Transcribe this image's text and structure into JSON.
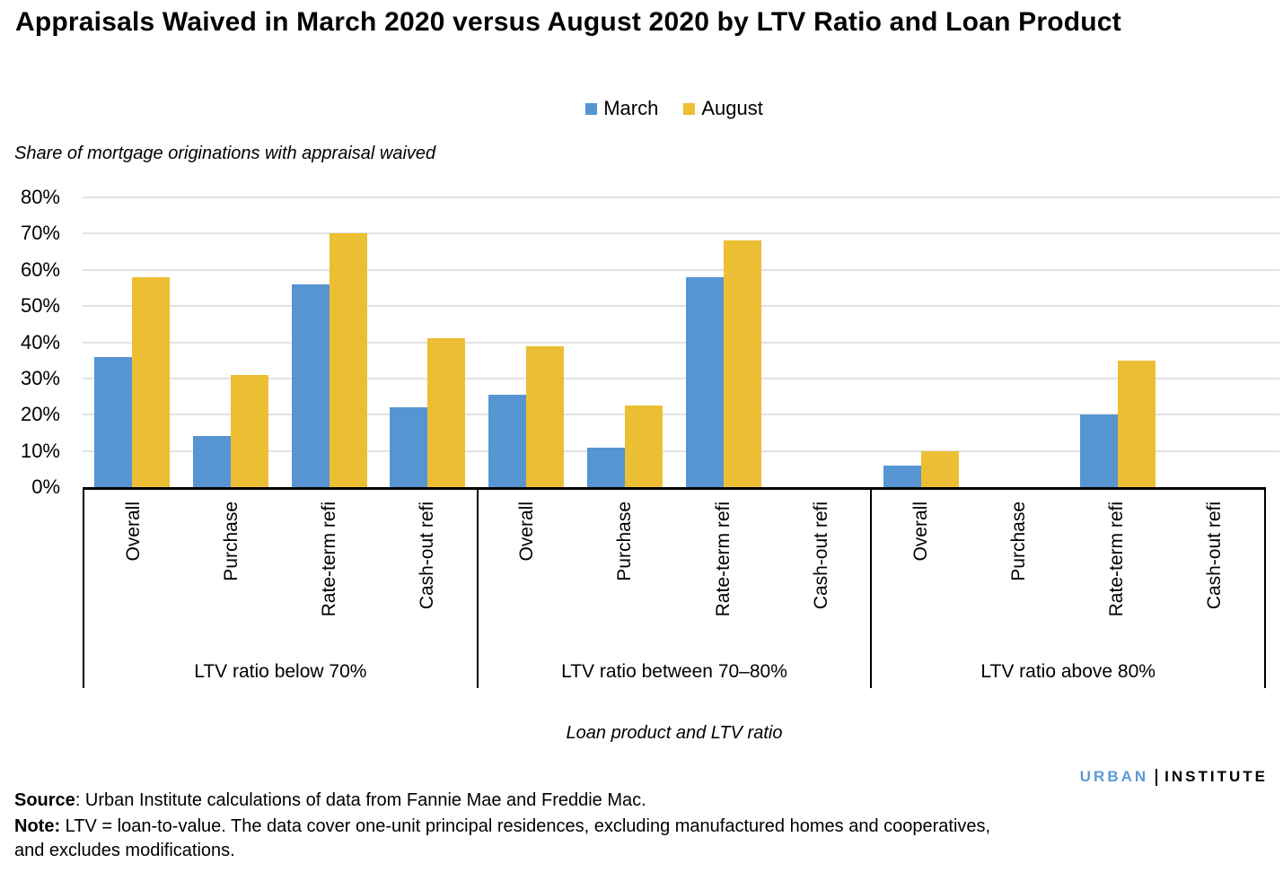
{
  "title": "Appraisals Waived in March 2020 versus August 2020 by LTV Ratio and Loan Product",
  "y_axis_label": "Share of mortgage originations with appraisal waived",
  "x_axis_title": "Loan product and LTV ratio",
  "legend": {
    "items": [
      {
        "label": "March",
        "color": "#5795D2"
      },
      {
        "label": "August",
        "color": "#ECBE33"
      }
    ]
  },
  "logo": {
    "first": "URBAN",
    "second": "INSTITUTE",
    "first_color": "#5B9BD5"
  },
  "source": {
    "label": "Source",
    "text": ": Urban Institute calculations of data from Fannie Mae and Freddie Mac."
  },
  "note": {
    "label": "Note:",
    "text": " LTV = loan-to-value. The data cover one-unit principal residences, excluding manufactured homes and cooperatives, and excludes modifications."
  },
  "chart_data": {
    "type": "bar",
    "title": "Appraisals Waived in March 2020 versus August 2020 by LTV Ratio and Loan Product",
    "ylabel": "Share of mortgage originations with appraisal waived",
    "xlabel": "Loan product and LTV ratio",
    "ylim": [
      0,
      80
    ],
    "yticks": [
      0,
      10,
      20,
      30,
      40,
      50,
      60,
      70,
      80
    ],
    "ytick_suffix": "%",
    "grid": true,
    "legend_position": "top",
    "categories": [
      "Overall",
      "Purchase",
      "Rate-term refi",
      "Cash-out refi"
    ],
    "series_names": [
      "March",
      "August"
    ],
    "colors": {
      "March": "#5795D2",
      "August": "#ECBE33"
    },
    "groups": [
      {
        "label": "LTV ratio below 70%",
        "series": [
          {
            "name": "March",
            "values": [
              36,
              14,
              56,
              22
            ]
          },
          {
            "name": "August",
            "values": [
              58,
              31,
              70,
              41
            ]
          }
        ]
      },
      {
        "label": "LTV ratio between 70–80%",
        "series": [
          {
            "name": "March",
            "values": [
              25.5,
              11,
              58,
              0
            ]
          },
          {
            "name": "August",
            "values": [
              39,
              22.5,
              68,
              0
            ]
          }
        ]
      },
      {
        "label": "LTV ratio above 80%",
        "series": [
          {
            "name": "March",
            "values": [
              6,
              0,
              20,
              0
            ]
          },
          {
            "name": "August",
            "values": [
              10,
              0,
              35,
              0
            ]
          }
        ]
      }
    ]
  }
}
